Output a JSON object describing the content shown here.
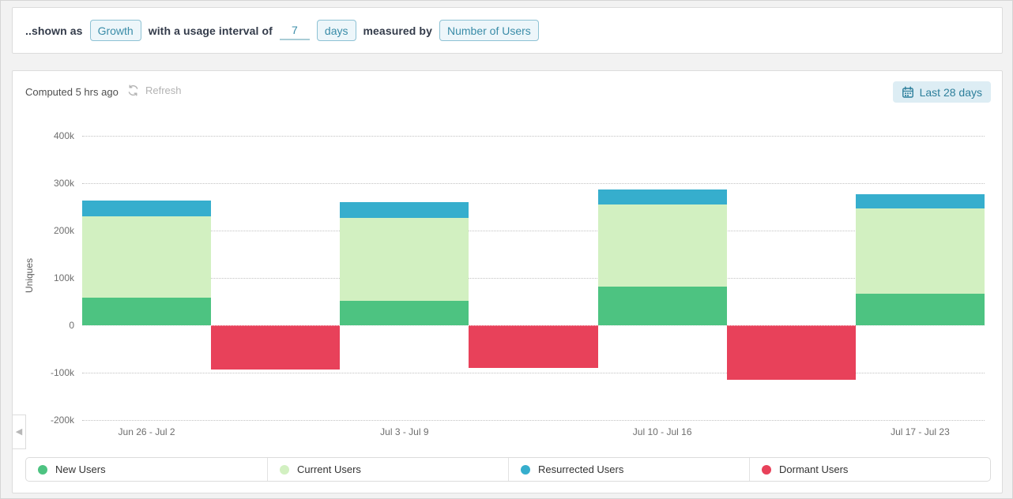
{
  "colors": {
    "accent_teal": "#3a8ca8",
    "button_bg": "#edf6fa",
    "button_border": "#8ec2d4",
    "daterange_bg": "#ddedf4",
    "daterange_text": "#2d7f9b",
    "new_users": "#4dc381",
    "current_users": "#d2f0c1",
    "resurrected_users": "#36aecd",
    "dormant_users": "#e8415a",
    "gridline": "#c2c2c2"
  },
  "icons": {
    "refresh": "refresh-icon",
    "calendar": "calendar-icon",
    "collapse_arrow": "collapse-arrow-icon",
    "collapse_glyph": "◀"
  },
  "query_bar": {
    "prefix_text": "..shown as",
    "growth_button": "Growth",
    "interval_text": "with a usage interval of",
    "interval_value": "7",
    "days_button": "days",
    "measured_text": "measured by",
    "metric_button": "Number of Users"
  },
  "panel": {
    "computed_text": "Computed 5 hrs ago",
    "refresh_label": "Refresh",
    "date_range_label": "Last 28 days"
  },
  "chart_data": {
    "type": "bar",
    "stacked": true,
    "title": "",
    "xlabel": "",
    "ylabel": "Uniques",
    "ylim": [
      -200000,
      400000
    ],
    "y_ticks": [
      "400k",
      "300k",
      "200k",
      "100k",
      "0",
      "-100k",
      "-200k"
    ],
    "y_tick_values": [
      400000,
      300000,
      200000,
      100000,
      0,
      -100000,
      -200000
    ],
    "grid": "dotted-horizontal",
    "legend_position": "bottom",
    "categories": [
      "Jun 26 - Jul 2",
      "Jul 3 - Jul 9",
      "Jul 10 - Jul 16",
      "Jul 17 - Jul 23"
    ],
    "series": [
      {
        "name": "New Users",
        "color": "#4dc381",
        "values": [
          58000,
          52000,
          81000,
          67000
        ]
      },
      {
        "name": "Current Users",
        "color": "#d2f0c1",
        "values": [
          172000,
          175000,
          174000,
          180000
        ]
      },
      {
        "name": "Resurrected Users",
        "color": "#36aecd",
        "values": [
          34000,
          33000,
          31000,
          29000
        ]
      },
      {
        "name": "Dormant Users",
        "color": "#e8415a",
        "values": [
          -93000,
          -90000,
          -115000,
          null
        ]
      }
    ],
    "note": "Dormant bars are offset one half-period right of each labeled period"
  }
}
